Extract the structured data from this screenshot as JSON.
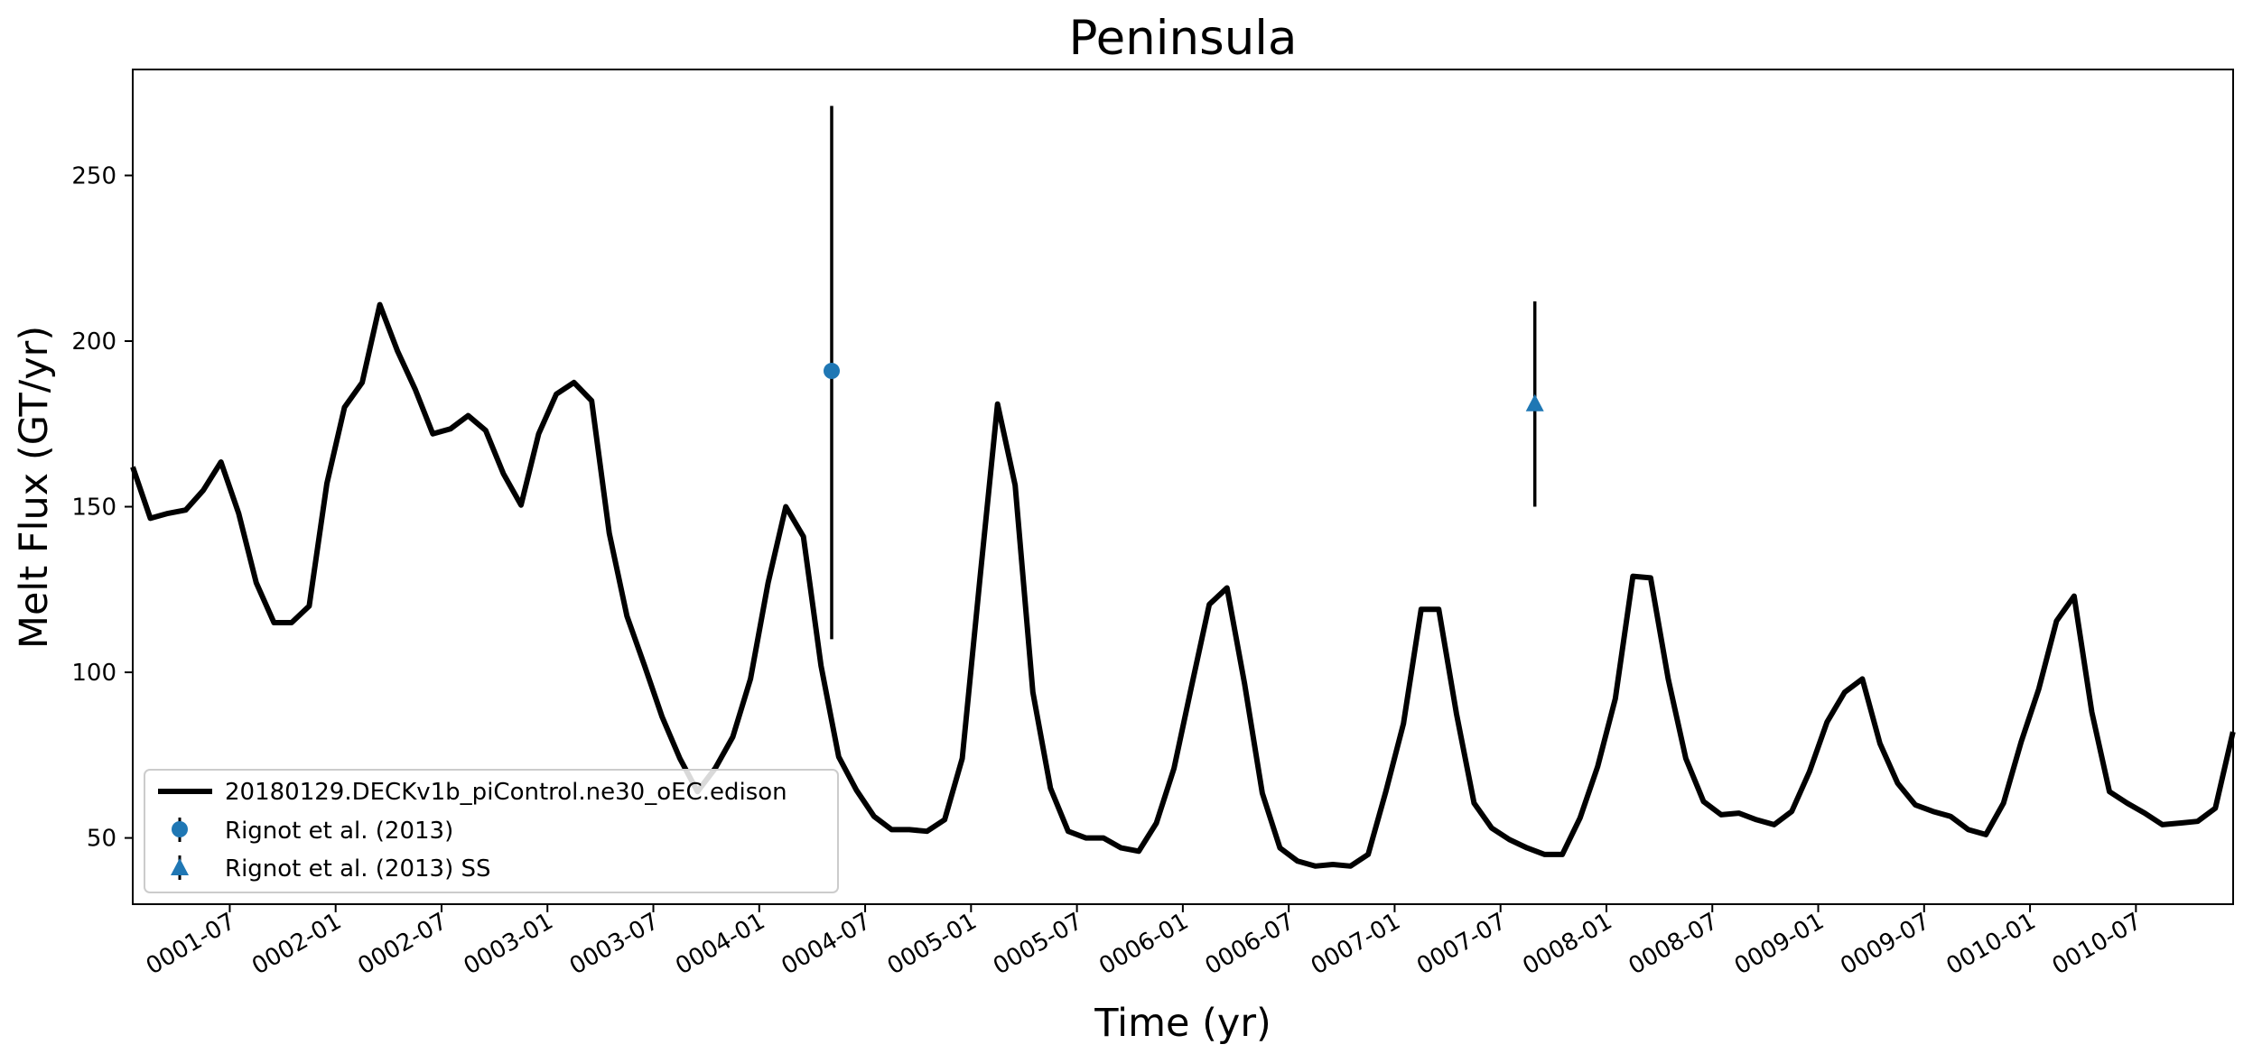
{
  "chart_data": {
    "type": "line",
    "title": "Peninsula",
    "xlabel": "Time (yr)",
    "ylabel": "Melt Flux (GT/yr)",
    "xlim": [
      0.0,
      9.917
    ],
    "ylim": [
      30,
      282
    ],
    "grid": false,
    "legend_position": "lower-left",
    "x_ticks": [
      {
        "value": 0.458,
        "label": "0001-07"
      },
      {
        "value": 0.958,
        "label": "0002-01"
      },
      {
        "value": 1.458,
        "label": "0002-07"
      },
      {
        "value": 1.958,
        "label": "0003-01"
      },
      {
        "value": 2.458,
        "label": "0003-07"
      },
      {
        "value": 2.958,
        "label": "0004-01"
      },
      {
        "value": 3.458,
        "label": "0004-07"
      },
      {
        "value": 3.958,
        "label": "0005-01"
      },
      {
        "value": 4.458,
        "label": "0005-07"
      },
      {
        "value": 4.958,
        "label": "0006-01"
      },
      {
        "value": 5.458,
        "label": "0006-07"
      },
      {
        "value": 5.958,
        "label": "0007-01"
      },
      {
        "value": 6.458,
        "label": "0007-07"
      },
      {
        "value": 6.958,
        "label": "0008-01"
      },
      {
        "value": 7.458,
        "label": "0008-07"
      },
      {
        "value": 7.958,
        "label": "0009-01"
      },
      {
        "value": 8.458,
        "label": "0009-07"
      },
      {
        "value": 8.958,
        "label": "0010-01"
      },
      {
        "value": 9.458,
        "label": "0010-07"
      }
    ],
    "y_ticks": [
      {
        "value": 50,
        "label": "50"
      },
      {
        "value": 100,
        "label": "100"
      },
      {
        "value": 150,
        "label": "150"
      },
      {
        "value": 200,
        "label": "200"
      },
      {
        "value": 250,
        "label": "250"
      }
    ],
    "series": [
      {
        "name": "20180129.DECKv1b_piControl.ne30_oEC.edison",
        "kind": "line",
        "color": "#000000",
        "x_start": 0.0,
        "x_step": 0.08333,
        "values": [
          162,
          146.5,
          148,
          149,
          155,
          163.5,
          148,
          127,
          115,
          115,
          120,
          157,
          180,
          187.5,
          211,
          197,
          185.5,
          172,
          173.5,
          177.5,
          173,
          160,
          150.5,
          172,
          184,
          187.5,
          182,
          142,
          117,
          102,
          86.5,
          74,
          64,
          71,
          80.5,
          98,
          127,
          150,
          141,
          102,
          74.5,
          64.5,
          56.5,
          52.5,
          52.5,
          52,
          55.5,
          74,
          128,
          181,
          156.5,
          94,
          65,
          52,
          50,
          50,
          47,
          46,
          54.5,
          71,
          96,
          120.5,
          125.5,
          96.5,
          63.5,
          47,
          43,
          41.5,
          42,
          41.5,
          45,
          64,
          84.5,
          119,
          119,
          87.5,
          60.5,
          53,
          49.5,
          47,
          45,
          45,
          56,
          71.5,
          92,
          129,
          128.5,
          98,
          74,
          61,
          57,
          57.5,
          55.5,
          54,
          58,
          70,
          85,
          94,
          98,
          78.5,
          66.5,
          60,
          58,
          56.5,
          52.5,
          51,
          60.5,
          79,
          95,
          115.5,
          123,
          88,
          64,
          60.5,
          57.5,
          54,
          54.5,
          55,
          59,
          82
        ]
      },
      {
        "name": "Rignot et al. (2013)",
        "kind": "errorbar",
        "marker": "circle",
        "color": "#1f77b4",
        "x": 3.3,
        "value": 191,
        "lower": 110,
        "upper": 271
      },
      {
        "name": "Rignot et al. (2013) SS",
        "kind": "errorbar",
        "marker": "triangle",
        "color": "#1f77b4",
        "x": 6.62,
        "value": 181,
        "lower": 150,
        "upper": 212
      }
    ]
  }
}
